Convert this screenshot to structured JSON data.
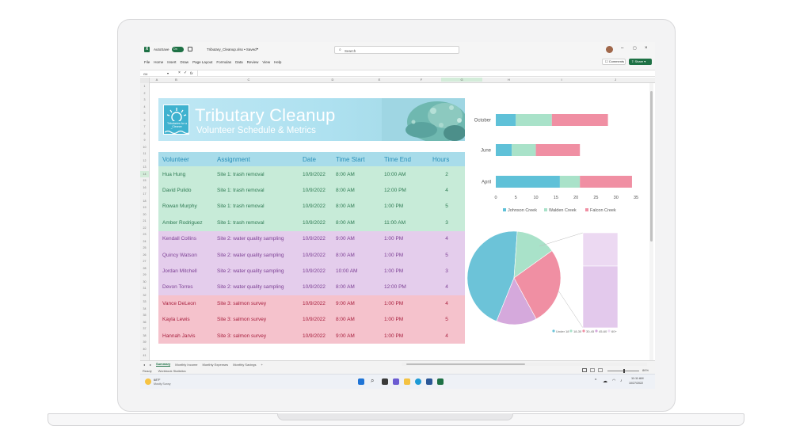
{
  "window": {
    "autosave_label": "AutoSave",
    "autosave_state": "On",
    "filename": "Tributary_Cleanup.xlsx • Saved",
    "search_placeholder": "Search",
    "comments_label": "Comments",
    "share_label": "Share"
  },
  "ribbon_tabs": [
    "File",
    "Home",
    "Insert",
    "Draw",
    "Page Layout",
    "Formulas",
    "Data",
    "Review",
    "View",
    "Help"
  ],
  "formula_bar": {
    "name_box": "G4",
    "fx": "fx"
  },
  "columns": [
    "A",
    "B",
    "C",
    "D",
    "E",
    "F",
    "G",
    "H",
    "I",
    "J"
  ],
  "rows": [
    "1",
    "2",
    "3",
    "4",
    "5",
    "6",
    "7",
    "8",
    "9",
    "10",
    "11",
    "12",
    "13",
    "14",
    "15",
    "16",
    "17",
    "18",
    "19",
    "20",
    "21",
    "22",
    "23",
    "24",
    "25",
    "26",
    "27",
    "28",
    "29",
    "30",
    "31",
    "32",
    "33",
    "34",
    "35",
    "36",
    "37",
    "38",
    "39",
    "40",
    "41"
  ],
  "banner": {
    "title": "Tributary Cleanup",
    "subtitle": "Volunteer Schedule & Metrics",
    "logo_text": "Tributaries for a Cleaner Tomorrow"
  },
  "table": {
    "headers": [
      "Volunteer",
      "Assignment",
      "Date",
      "Time Start",
      "Time End",
      "Hours"
    ],
    "rows": [
      {
        "cells": [
          "Hua Hung",
          "Site 1: trash removal",
          "10/9/2022",
          "8:00 AM",
          "10:00 AM",
          "2"
        ],
        "group": "g"
      },
      {
        "cells": [
          "David Pulido",
          "Site 1: trash removal",
          "10/9/2022",
          "8:00 AM",
          "12:00 PM",
          "4"
        ],
        "group": "g"
      },
      {
        "cells": [
          "Rowan Murphy",
          "Site 1: trash removal",
          "10/9/2022",
          "8:00 AM",
          "1:00 PM",
          "5"
        ],
        "group": "g"
      },
      {
        "cells": [
          "Amber Rodriguez",
          "Site 1: trash removal",
          "10/9/2022",
          "8:00 AM",
          "11:00 AM",
          "3"
        ],
        "group": "g"
      },
      {
        "cells": [
          "Kendall Collins",
          "Site 2: water quality sampling",
          "10/9/2022",
          "9:00 AM",
          "1:00 PM",
          "4"
        ],
        "group": "p"
      },
      {
        "cells": [
          "Quincy Watson",
          "Site 2: water quality sampling",
          "10/9/2022",
          "8:00 AM",
          "1:00 PM",
          "5"
        ],
        "group": "p"
      },
      {
        "cells": [
          "Jordan Mitchell",
          "Site 2: water quality sampling",
          "10/9/2022",
          "10:00 AM",
          "1:00 PM",
          "3"
        ],
        "group": "p"
      },
      {
        "cells": [
          "Devon Torres",
          "Site 2: water quality sampling",
          "10/9/2022",
          "8:00 AM",
          "12:00 PM",
          "4"
        ],
        "group": "p"
      },
      {
        "cells": [
          "Vance DeLeon",
          "Site 3: salmon survey",
          "10/9/2022",
          "9:00 AM",
          "1:00 PM",
          "4"
        ],
        "group": "r"
      },
      {
        "cells": [
          "Kayla Lewis",
          "Site 3: salmon survey",
          "10/9/2022",
          "8:00 AM",
          "1:00 PM",
          "5"
        ],
        "group": "r"
      },
      {
        "cells": [
          "Hannah Jarvis",
          "Site 3: salmon survey",
          "10/9/2022",
          "9:00 AM",
          "1:00 PM",
          "4"
        ],
        "group": "r"
      }
    ]
  },
  "chart_data": [
    {
      "type": "bar",
      "orientation": "horizontal",
      "stacked": true,
      "categories": [
        "October",
        "June",
        "April"
      ],
      "series": [
        {
          "name": "Johnson Creek",
          "values": [
            5,
            4,
            16
          ],
          "color": "#5fc1d8"
        },
        {
          "name": "Walden Creek",
          "values": [
            9,
            6,
            5
          ],
          "color": "#a9e2c9"
        },
        {
          "name": "Falcon Creek",
          "values": [
            14,
            11,
            13
          ],
          "color": "#f08fa3"
        }
      ],
      "xticks": [
        "0",
        "5",
        "10",
        "15",
        "20",
        "25",
        "30",
        "35"
      ],
      "xlim": [
        0,
        35
      ],
      "legend_position": "bottom"
    },
    {
      "type": "pie",
      "subtype": "pie-of-pie",
      "slices": [
        {
          "label": "Under 18",
          "value": 45,
          "color": "#6cc3d8"
        },
        {
          "label": "18-30",
          "value": 14,
          "color": "#a9e2c9"
        },
        {
          "label": "30-45",
          "value": 27,
          "color": "#f08fa3"
        },
        {
          "label": "45-60",
          "value": 14,
          "color": "#d5a9dc"
        }
      ],
      "secondary_stack": [
        {
          "label": "60+",
          "value": 35,
          "color": "#ecd9f2"
        },
        {
          "label": "45-60",
          "value": 65,
          "color": "#e3c9ec"
        }
      ],
      "legend": [
        "Under 18",
        "18-30",
        "30-45",
        "45-60",
        "60+"
      ],
      "legend_colors": [
        "#6cc3d8",
        "#a9e2c9",
        "#f08fa3",
        "#d5a9dc",
        "#ecd9f2"
      ],
      "legend_position": "bottom-right"
    }
  ],
  "sheet_tabs": [
    "Summary",
    "Monthly Income",
    "Monthly Expenses",
    "Monthly Savings"
  ],
  "add_sheet": "+",
  "status": {
    "ready": "Ready",
    "workbook_stats": "Workbook Statistics",
    "zoom": "86%"
  },
  "taskbar": {
    "weather_temp": "68°F",
    "weather_desc": "Mostly Sunny",
    "time": "11:11 AM",
    "date": "10/27/2022"
  }
}
